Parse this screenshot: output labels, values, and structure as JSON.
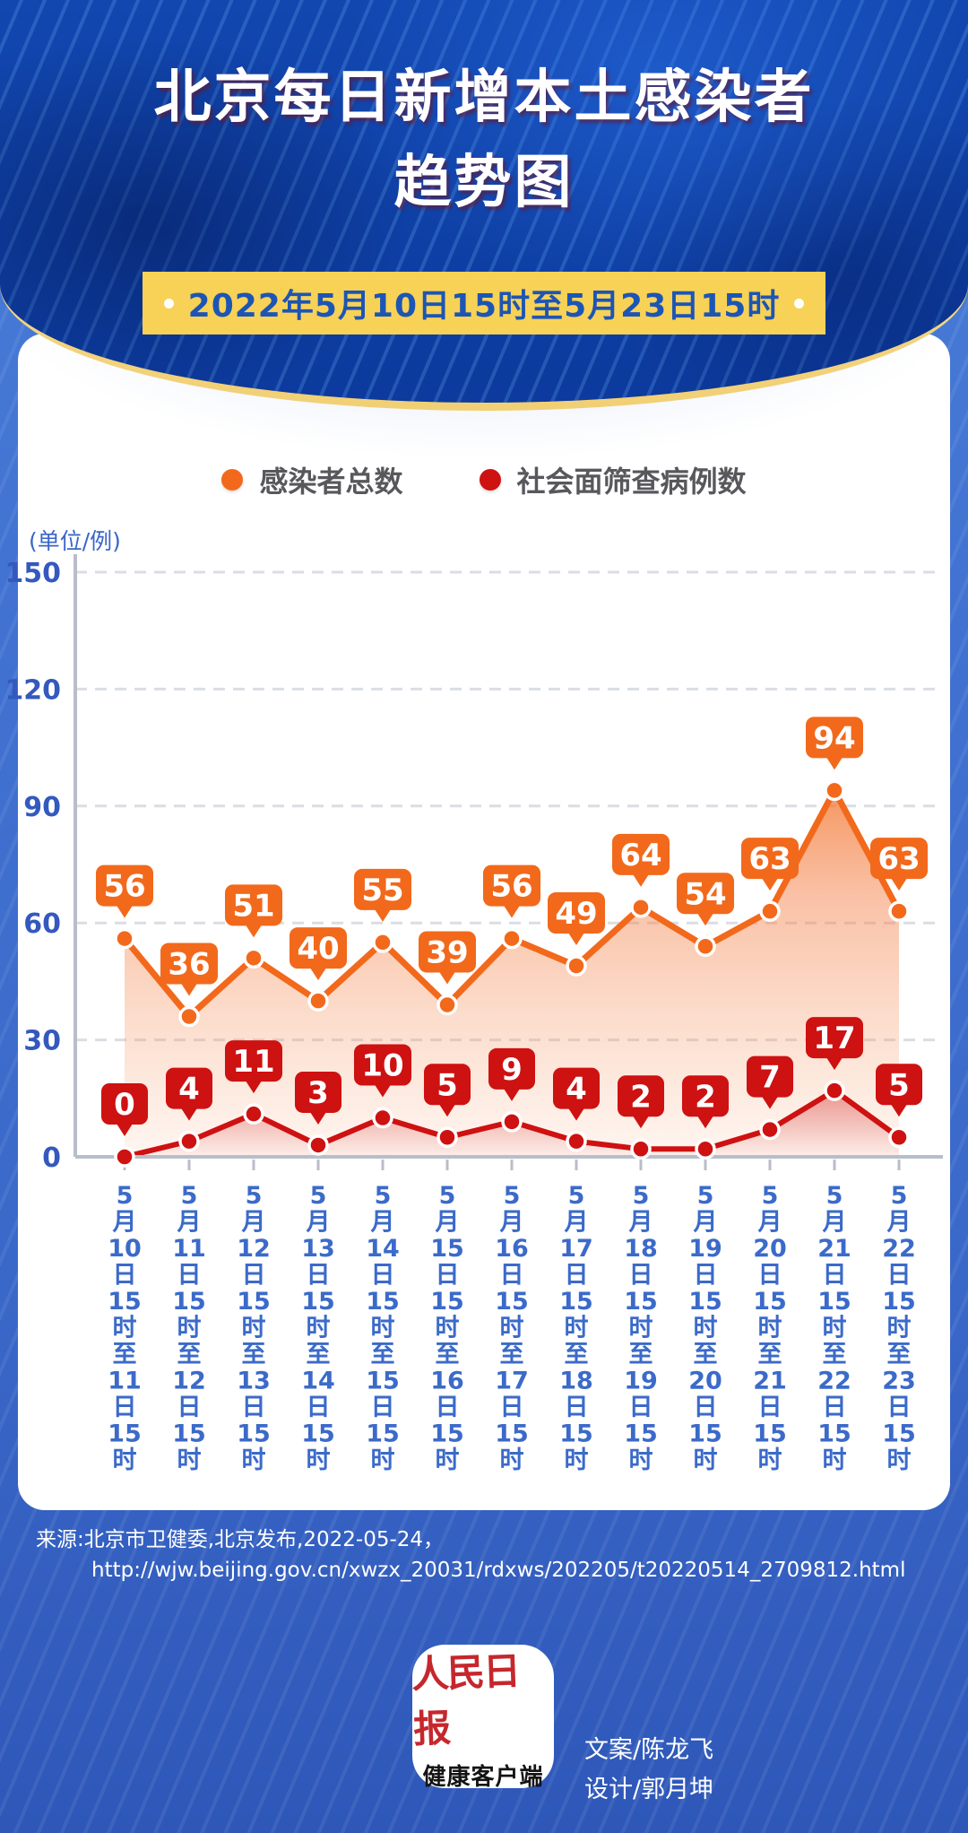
{
  "header": {
    "title_line1": "北京每日新增本土感染者",
    "title_line2": "趋势图",
    "badge_text": "2022年5月10日15时至5月23日15时"
  },
  "legend": {
    "total_label": "感染者总数",
    "community_label": "社会面筛查病例数"
  },
  "chart_data": {
    "type": "line",
    "unit_label": "(单位/例)",
    "categories": [
      "5月10日15时至11日15时",
      "5月11日15时至12日15时",
      "5月12日15时至13日15时",
      "5月13日15时至14日15时",
      "5月14日15时至15日15时",
      "5月15日15时至16日15时",
      "5月16日15时至17日15时",
      "5月17日15时至18日15时",
      "5月18日15时至19日15时",
      "5月19日15时至20日15时",
      "5月20日15时至21日15时",
      "5月21日15时至22日15时",
      "5月22日15时至23日15时"
    ],
    "series": [
      {
        "name": "感染者总数",
        "color": "#F2691C",
        "values": [
          56,
          36,
          51,
          40,
          55,
          39,
          56,
          49,
          64,
          54,
          63,
          94,
          63
        ]
      },
      {
        "name": "社会面筛查病例数",
        "color": "#CE1111",
        "values": [
          0,
          4,
          11,
          3,
          10,
          5,
          9,
          4,
          2,
          2,
          7,
          17,
          5
        ]
      }
    ],
    "ylim": [
      0,
      150
    ],
    "yticks": [
      0,
      30,
      60,
      90,
      120,
      150
    ],
    "grid": true,
    "legend_position": "top",
    "area_fill": true,
    "data_labels": true
  },
  "source": {
    "line1": "来源:北京市卫健委,北京发布,2022-05-24，",
    "line2": "http://wjw.beijing.gov.cn/xwzx_20031/rdxws/202205/t20220514_2709812.html"
  },
  "footer": {
    "logo_title": "人民日报",
    "logo_subtitle": "健康客户端",
    "credit_line1": "文案/陈龙飞",
    "credit_line2": "设计/郭月坤"
  },
  "colors": {
    "header_bg": "#0c3a9d",
    "curve_rim": "#f1cf74",
    "badge_bg": "#F7D257",
    "badge_text": "#1D55B5",
    "axis_text": "#3459BE",
    "xlabel_text": "#3B6AC9",
    "page_bg": "#3a68c9"
  }
}
